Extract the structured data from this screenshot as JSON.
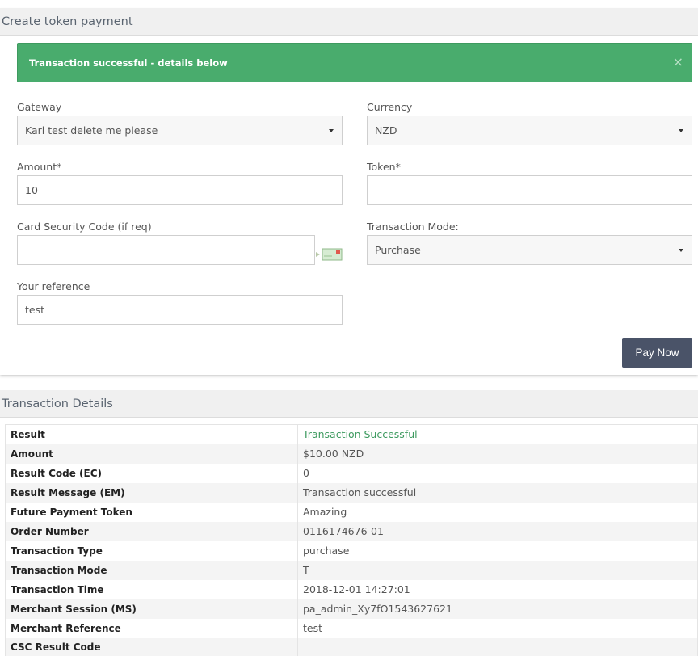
{
  "payment_panel": {
    "title": "Create token payment",
    "alert": {
      "message": "Transaction successful - details below",
      "close_glyph": "×"
    },
    "gateway": {
      "label": "Gateway",
      "value": "Karl test delete me please"
    },
    "currency": {
      "label": "Currency",
      "value": "NZD"
    },
    "amount": {
      "label": "Amount*",
      "value": "10"
    },
    "token": {
      "label": "Token*",
      "value": ""
    },
    "csc": {
      "label": "Card Security Code (if req)",
      "value": "",
      "icon": "credit-card-icon"
    },
    "mode": {
      "label": "Transaction Mode:",
      "value": "Purchase"
    },
    "reference": {
      "label": "Your reference",
      "value": "test"
    },
    "pay_button": "Pay Now"
  },
  "details_panel": {
    "title": "Transaction Details",
    "rows": [
      {
        "key": "Result",
        "value": "Transaction Successful"
      },
      {
        "key": "Amount",
        "value": "$10.00 NZD"
      },
      {
        "key": "Result Code (EC)",
        "value": "0"
      },
      {
        "key": "Result Message (EM)",
        "value": "Transaction successful"
      },
      {
        "key": "Future Payment Token",
        "value": "Amazing"
      },
      {
        "key": "Order Number",
        "value": "0116174676-01"
      },
      {
        "key": "Transaction Type",
        "value": "purchase"
      },
      {
        "key": "Transaction Mode",
        "value": "T"
      },
      {
        "key": "Transaction Time",
        "value": "2018-12-01 14:27:01"
      },
      {
        "key": "Merchant Session (MS)",
        "value": "pa_admin_Xy7fO1543627621"
      },
      {
        "key": "Merchant Reference",
        "value": "test"
      },
      {
        "key": "CSC Result Code",
        "value": ""
      }
    ]
  },
  "colors": {
    "success": "#49ac6d",
    "button": "#4a5368"
  }
}
